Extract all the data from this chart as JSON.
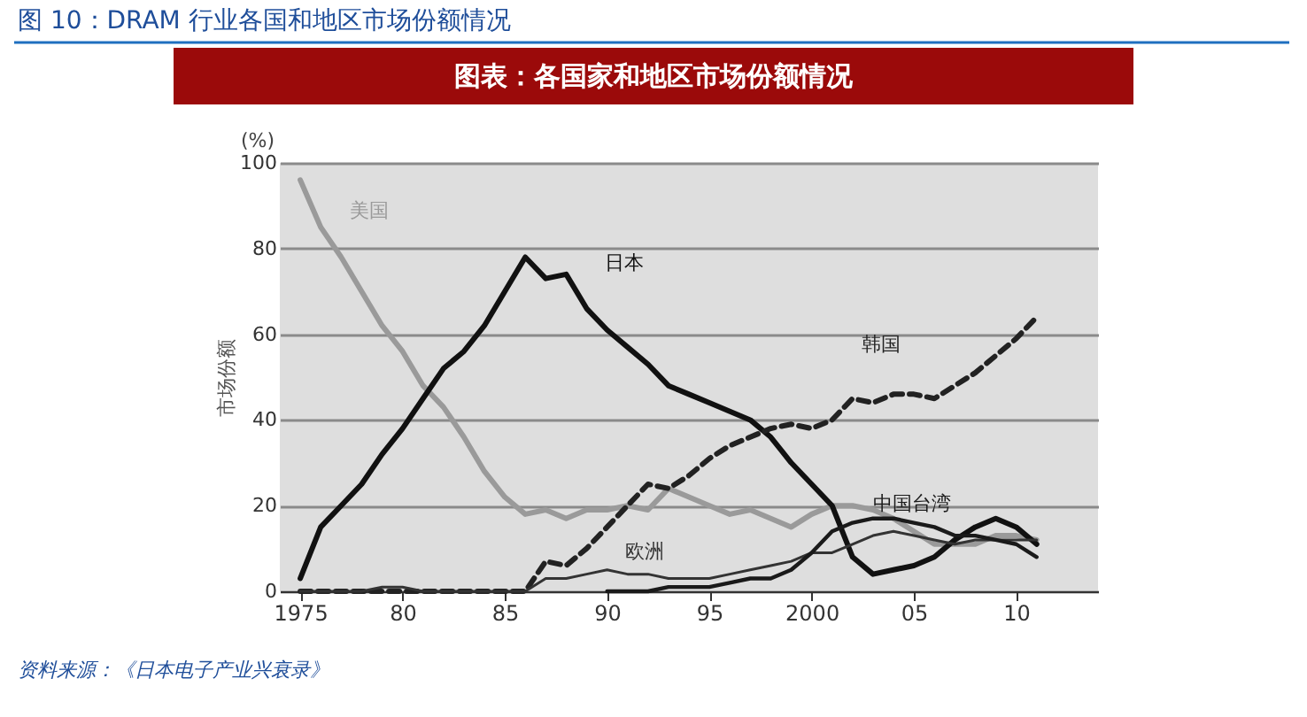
{
  "chart_data": {
    "type": "line",
    "title": "图 10：DRAM 行业各国和地区市场份额情况",
    "subtitle": "图表：各国家和地区市场份额情况",
    "ylabel": "市场份额",
    "annotations": [
      "(%)",
      "资料来源：《日本电子产业兴衰录》"
    ],
    "x": [
      1975,
      1976,
      1977,
      1978,
      1979,
      1980,
      1981,
      1982,
      1983,
      1984,
      1985,
      1986,
      1987,
      1988,
      1989,
      1990,
      1991,
      1992,
      1993,
      1994,
      1995,
      1996,
      1997,
      1998,
      1999,
      2000,
      2001,
      2002,
      2003,
      2004,
      2005,
      2006,
      2007,
      2008,
      2009,
      2010,
      2011
    ],
    "xlim": [
      1974,
      2014
    ],
    "xticks": [
      1975,
      {
        "value": 1980,
        "label": "80"
      },
      {
        "value": 1985,
        "label": "85"
      },
      {
        "value": 1990,
        "label": "90"
      },
      {
        "value": 1995,
        "label": "95"
      },
      2000,
      {
        "value": 2005,
        "label": "05"
      },
      {
        "value": 2010,
        "label": "10"
      }
    ],
    "ylim": [
      0,
      100
    ],
    "yticks": [
      0,
      20,
      40,
      60,
      80,
      100
    ],
    "grid": "y",
    "series": [
      {
        "name": "美国",
        "color": "#9a9a9a",
        "values": [
          96,
          85,
          78,
          70,
          62,
          56,
          48,
          43,
          36,
          28,
          22,
          18,
          19,
          17,
          19,
          19,
          20,
          19,
          24,
          22,
          20,
          18,
          19,
          17,
          15,
          18,
          20,
          20,
          19,
          17,
          14,
          11,
          11,
          11,
          13,
          13,
          12
        ]
      },
      {
        "name": "日本",
        "color": "#111111",
        "values": [
          3,
          15,
          20,
          25,
          32,
          38,
          45,
          52,
          56,
          62,
          70,
          78,
          73,
          74,
          66,
          61,
          57,
          53,
          48,
          46,
          44,
          42,
          40,
          36,
          30,
          25,
          20,
          8,
          4,
          5,
          6,
          8,
          12,
          15,
          17,
          15,
          11
        ]
      },
      {
        "name": "韩国",
        "color": "#222222",
        "line_style": "dashed",
        "values": [
          0,
          0,
          0,
          0,
          0,
          0,
          0,
          0,
          0,
          0,
          0,
          0,
          7,
          6,
          10,
          15,
          20,
          25,
          24,
          27,
          31,
          34,
          36,
          38,
          39,
          38,
          40,
          45,
          44,
          46,
          46,
          45,
          48,
          51,
          55,
          59,
          64
        ]
      },
      {
        "name": "欧洲",
        "color": "#333333",
        "values": [
          0,
          0,
          0,
          0,
          1,
          1,
          0,
          0,
          0,
          0,
          0,
          0,
          3,
          3,
          4,
          5,
          4,
          4,
          3,
          3,
          3,
          4,
          5,
          6,
          7,
          9,
          9,
          11,
          13,
          14,
          13,
          12,
          11,
          12,
          12,
          12,
          12
        ]
      },
      {
        "name": "中国台湾",
        "color": "#1a1a1a",
        "x": [
          1990,
          1991,
          1992,
          1993,
          1994,
          1995,
          1996,
          1997,
          1998,
          1999,
          2000,
          2001,
          2002,
          2003,
          2004,
          2005,
          2006,
          2007,
          2008,
          2009,
          2010,
          2011
        ],
        "values": [
          0,
          0,
          0,
          1,
          1,
          1,
          2,
          3,
          3,
          5,
          9,
          14,
          16,
          17,
          17,
          16,
          15,
          13,
          13,
          12,
          11,
          8
        ]
      }
    ]
  }
}
